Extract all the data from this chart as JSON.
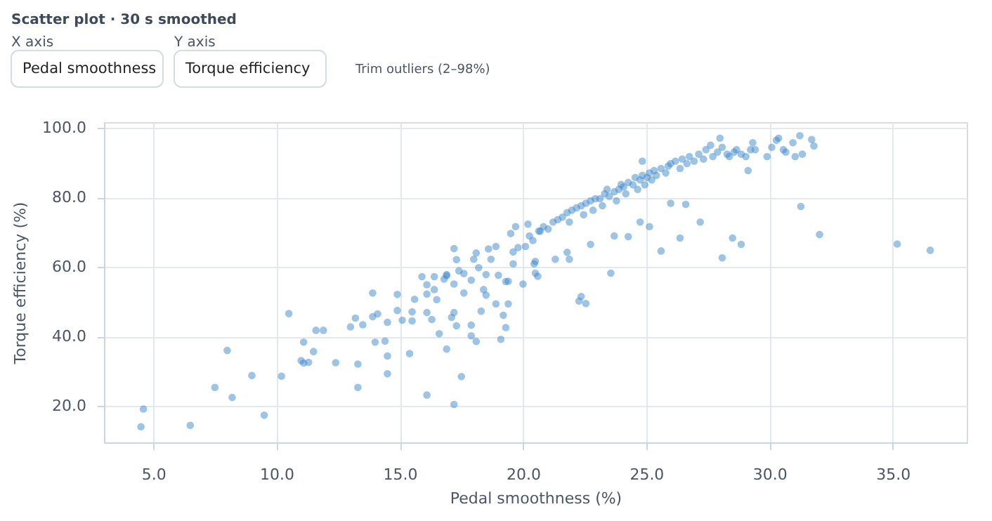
{
  "chart_data": {
    "type": "scatter",
    "title": "Scatter plot · 30 s smoothed",
    "xlabel": "Pedal smoothness (%)",
    "ylabel": "Torque efficiency (%)",
    "annotations": [
      "X axis",
      "Pedal smoothness",
      "Y axis",
      "Torque efficiency",
      "Trim outliers (2–98%)"
    ],
    "xlim": [
      3,
      38
    ],
    "ylim": [
      9.6,
      101.6
    ],
    "xticks": [
      {
        "value": 5,
        "label": "5.0"
      },
      {
        "value": 10,
        "label": "10.0"
      },
      {
        "value": 15,
        "label": "15.0"
      },
      {
        "value": 20,
        "label": "20.0"
      },
      {
        "value": 25,
        "label": "25.0"
      },
      {
        "value": 30,
        "label": "30.0"
      },
      {
        "value": 35,
        "label": "35.0"
      }
    ],
    "yticks": [
      {
        "value": 20,
        "label": "20.0"
      },
      {
        "value": 40,
        "label": "40.0"
      },
      {
        "value": 60,
        "label": "60.0"
      },
      {
        "value": 80,
        "label": "80.0"
      },
      {
        "value": 100,
        "label": "100.0"
      }
    ],
    "grid": true,
    "marker": "circle",
    "series": [
      {
        "color": "#3b87cc",
        "x": [
          4.5,
          4.6,
          6.5,
          7.5,
          8.0,
          8.2,
          9.0,
          9.5,
          10.2,
          10.5,
          11.0,
          11.1,
          11.3,
          11.1,
          11.5,
          11.6,
          11.9,
          12.4,
          13.0,
          13.2,
          13.3,
          13.3,
          13.5,
          13.9,
          13.9,
          14.0,
          14.1,
          14.4,
          14.5,
          14.5,
          14.5,
          14.9,
          14.9,
          15.1,
          15.4,
          15.5,
          15.5,
          15.6,
          15.9,
          16.1,
          16.1,
          16.1,
          16.1,
          16.3,
          16.4,
          16.4,
          16.5,
          16.6,
          16.8,
          16.9,
          16.9,
          16.9,
          17.1,
          17.2,
          17.2,
          17.2,
          17.2,
          17.3,
          17.3,
          17.4,
          17.5,
          17.6,
          17.6,
          17.9,
          17.9,
          17.9,
          18.1,
          18.0,
          18.1,
          18.2,
          18.3,
          18.4,
          18.5,
          18.5,
          18.6,
          18.7,
          18.9,
          18.9,
          19.0,
          19.1,
          19.2,
          19.3,
          19.3,
          19.4,
          19.4,
          19.5,
          19.6,
          19.6,
          19.7,
          19.8,
          20.0,
          20.1,
          20.2,
          20.4,
          20.5,
          20.5,
          20.6,
          20.7,
          20.26,
          20.64,
          20.83,
          21.02,
          21.22,
          21.41,
          21.6,
          21.79,
          21.88,
          21.98,
          22.17,
          22.36,
          22.46,
          22.55,
          22.74,
          22.84,
          22.93,
          23.12,
          23.22,
          23.31,
          23.41,
          23.5,
          23.7,
          23.79,
          23.89,
          23.98,
          24.08,
          24.17,
          24.27,
          24.46,
          24.55,
          24.65,
          24.75,
          24.84,
          24.94,
          25.03,
          25.13,
          25.22,
          25.32,
          25.41,
          25.6,
          25.79,
          25.89,
          25.99,
          26.18,
          26.37,
          26.46,
          26.65,
          26.75,
          26.94,
          27.13,
          27.32,
          27.42,
          27.61,
          27.7,
          27.89,
          27.99,
          28.08,
          28.28,
          28.37,
          28.56,
          28.66,
          28.85,
          29.04,
          29.13,
          29.23,
          29.32,
          29.42,
          29.9,
          30.09,
          30.28,
          30.37,
          30.56,
          30.66,
          30.95,
          31.04,
          31.23,
          31.33,
          31.71,
          31.8,
          21.79,
          21.88,
          20.45,
          21.31,
          22.36,
          22.55,
          22.27,
          23.56,
          22.74,
          23.7,
          24.27,
          24.75,
          25.13,
          25.6,
          25.99,
          26.37,
          26.6,
          27.19,
          28.08,
          28.5,
          28.85,
          31.27,
          32.03,
          35.18,
          36.52,
          24.84
        ],
        "values": [
          14.1,
          19.2,
          14.5,
          25.4,
          36.0,
          22.5,
          28.8,
          17.4,
          28.6,
          46.6,
          33.1,
          32.4,
          32.6,
          38.4,
          35.7,
          41.8,
          41.8,
          32.5,
          42.8,
          45.3,
          32.1,
          25.4,
          43.4,
          52.5,
          45.7,
          38.4,
          46.5,
          38.7,
          44.1,
          34.4,
          29.3,
          52.1,
          47.5,
          44.7,
          35.1,
          47.1,
          44.5,
          50.7,
          57.2,
          23.2,
          54.9,
          52.2,
          46.9,
          44.9,
          57.2,
          53.5,
          50.6,
          40.8,
          56.5,
          57.8,
          57.5,
          36.4,
          45.5,
          55.1,
          46.9,
          20.5,
          65.3,
          43.1,
          62.1,
          58.9,
          28.5,
          52.5,
          58.1,
          56.2,
          43.3,
          40.2,
          38.6,
          62.2,
          64.0,
          59.8,
          47.3,
          53.5,
          57.8,
          51.9,
          65.2,
          62.2,
          49.4,
          65.9,
          57.6,
          39.2,
          46.1,
          55.8,
          42.6,
          49.4,
          55.9,
          69.6,
          60.9,
          64.3,
          71.6,
          65.6,
          55.1,
          65.9,
          72.3,
          67.6,
          61.6,
          58.2,
          57.3,
          70.3,
          68.9,
          70.3,
          71.6,
          70.9,
          72.9,
          73.6,
          74.3,
          75.6,
          72.9,
          76.3,
          77.0,
          77.6,
          75.0,
          78.3,
          79.0,
          76.3,
          79.6,
          79.6,
          77.6,
          81.0,
          82.3,
          80.3,
          81.6,
          79.0,
          82.3,
          83.7,
          83.0,
          81.0,
          84.3,
          83.6,
          85.7,
          82.3,
          85.0,
          86.3,
          83.6,
          85.7,
          87.0,
          85.0,
          87.7,
          86.3,
          88.3,
          87.0,
          89.0,
          89.7,
          90.4,
          88.3,
          91.0,
          89.7,
          91.7,
          90.4,
          92.4,
          91.0,
          93.7,
          95.0,
          91.7,
          93.0,
          97.0,
          94.4,
          92.4,
          91.7,
          93.0,
          93.7,
          92.4,
          91.7,
          87.7,
          93.7,
          95.7,
          93.7,
          91.7,
          94.4,
          96.4,
          97.0,
          93.7,
          93.0,
          95.7,
          91.7,
          97.7,
          92.4,
          96.6,
          94.8,
          64.2,
          62.2,
          60.9,
          62.2,
          51.5,
          49.5,
          50.2,
          58.2,
          66.5,
          68.9,
          68.7,
          72.9,
          71.6,
          64.6,
          78.3,
          68.3,
          78.0,
          72.9,
          62.6,
          68.3,
          66.5,
          77.4,
          69.3,
          66.6,
          64.8,
          90.4
        ]
      }
    ]
  }
}
